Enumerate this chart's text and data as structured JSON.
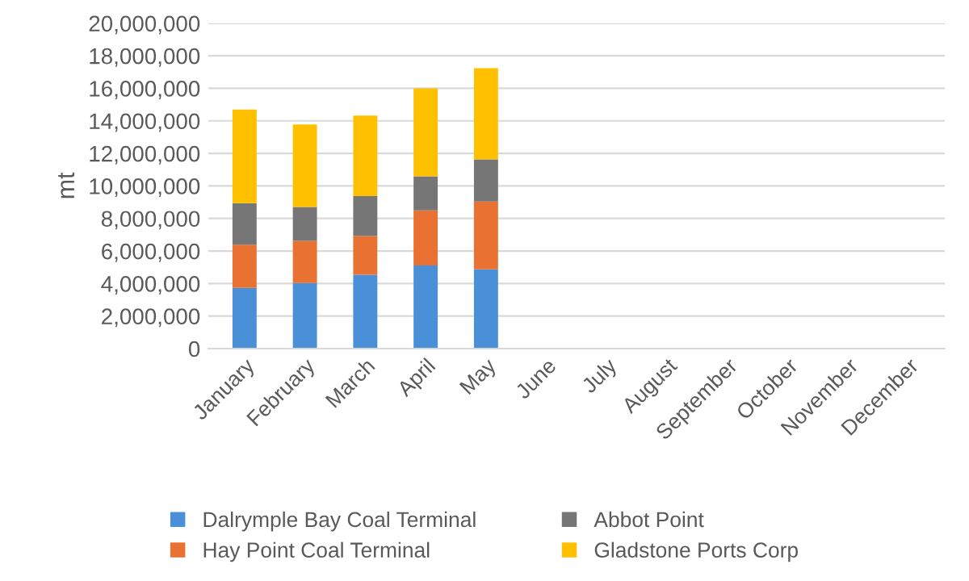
{
  "chart_data": {
    "type": "bar",
    "ylabel": "mt",
    "stacked": true,
    "categories": [
      "January",
      "February",
      "March",
      "April",
      "May",
      "June",
      "July",
      "August",
      "September",
      "October",
      "November",
      "December"
    ],
    "series": [
      {
        "name": "Dalrymple Bay Coal Terminal",
        "color": "#4a90d9",
        "values": [
          3730000,
          4030000,
          4540000,
          5110000,
          4870000,
          null,
          null,
          null,
          null,
          null,
          null,
          null
        ]
      },
      {
        "name": "Hay Point Coal Terminal",
        "color": "#e97132",
        "values": [
          2660000,
          2590000,
          2380000,
          3390000,
          4170000,
          null,
          null,
          null,
          null,
          null,
          null,
          null
        ]
      },
      {
        "name": "Abbot Point",
        "color": "#767676",
        "values": [
          2550000,
          2090000,
          2460000,
          2090000,
          2590000,
          null,
          null,
          null,
          null,
          null,
          null,
          null
        ]
      },
      {
        "name": "Gladstone Ports Corp",
        "color": "#ffc000",
        "values": [
          5750000,
          5070000,
          4940000,
          5410000,
          5610000,
          null,
          null,
          null,
          null,
          null,
          null,
          null
        ]
      }
    ],
    "ylim": [
      0,
      20000000
    ],
    "yticks": [
      {
        "value": 0,
        "label": "0"
      },
      {
        "value": 2000000,
        "label": "2,000,000"
      },
      {
        "value": 4000000,
        "label": "4,000,000"
      },
      {
        "value": 6000000,
        "label": "6,000,000"
      },
      {
        "value": 8000000,
        "label": "8,000,000"
      },
      {
        "value": 10000000,
        "label": "10,000,000"
      },
      {
        "value": 12000000,
        "label": "12,000,000"
      },
      {
        "value": 14000000,
        "label": "14,000,000"
      },
      {
        "value": 16000000,
        "label": "16,000,000"
      },
      {
        "value": 18000000,
        "label": "18,000,000"
      },
      {
        "value": 20000000,
        "label": "20,000,000"
      }
    ],
    "grid": "y",
    "legend": "bottom"
  }
}
